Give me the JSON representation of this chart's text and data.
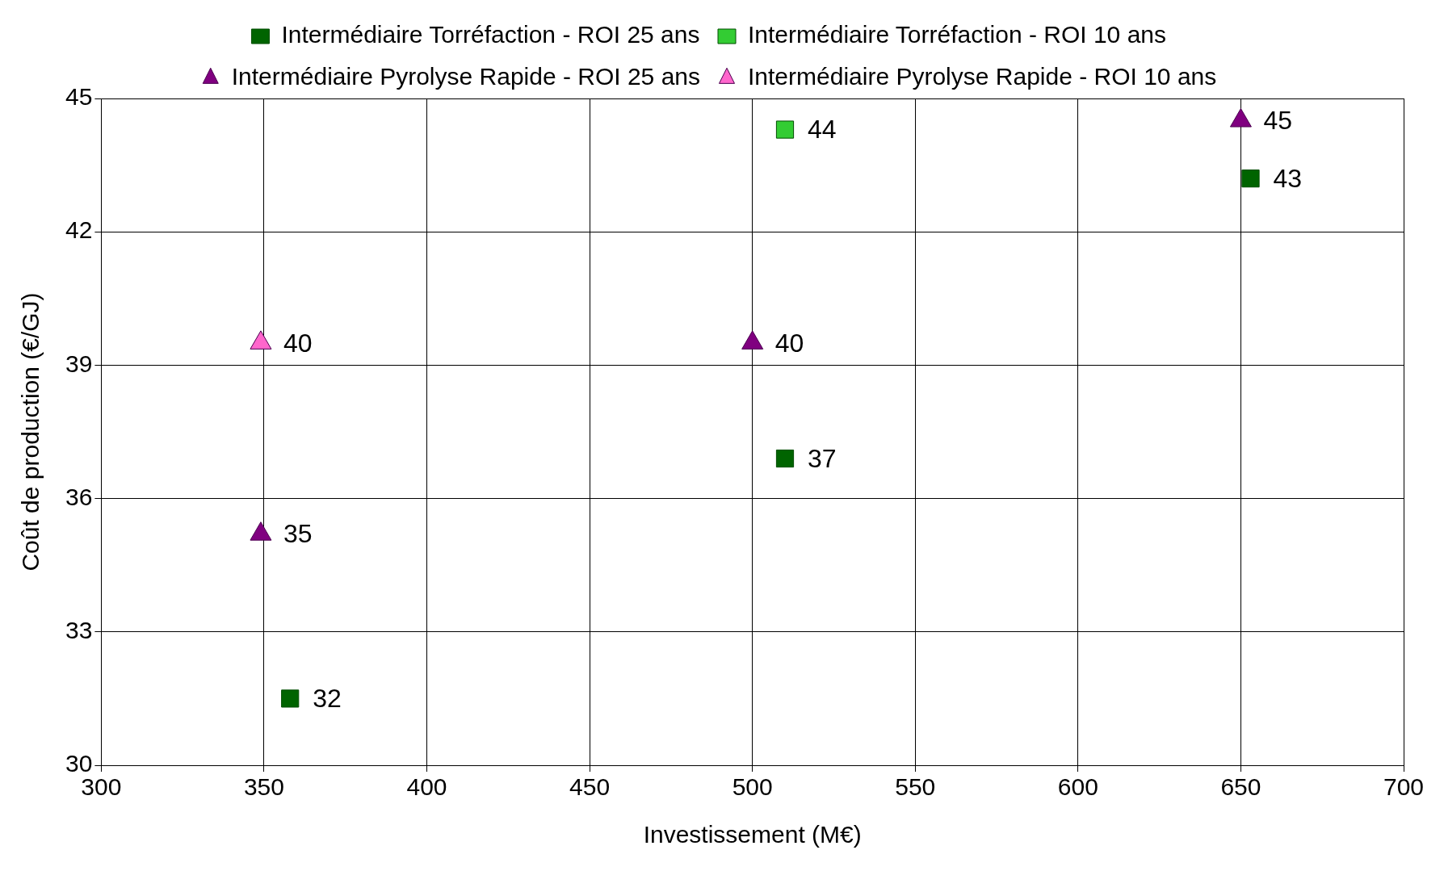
{
  "chart_data": {
    "type": "scatter",
    "xlabel": "Investissement (M€)",
    "ylabel": "Coût de production (€/GJ)",
    "xlim": [
      300,
      700
    ],
    "xticks": [
      300,
      350,
      400,
      450,
      500,
      550,
      600,
      650,
      700
    ],
    "ylim": [
      30,
      45
    ],
    "yticks": [
      30,
      33,
      36,
      39,
      42,
      45
    ],
    "grid": true,
    "legend": "top",
    "series": [
      {
        "name": "Intermédiaire Torréfaction - ROI 25 ans",
        "color": "#006400",
        "marker": "square",
        "x": [
          358,
          510,
          653
        ],
        "values": [
          31.5,
          36.9,
          43.2
        ],
        "value_labels": [
          "32",
          "37",
          "43"
        ]
      },
      {
        "name": "Intermédiaire Torréfaction - ROI 10 ans",
        "color": "#33cc33",
        "marker": "square",
        "x": [
          510
        ],
        "values": [
          44.3
        ],
        "value_labels": [
          "44"
        ]
      },
      {
        "name": "Intermédiaire Pyrolyse Rapide - ROI 25 ans",
        "color": "#800080",
        "marker": "triangle",
        "x": [
          349,
          500,
          650
        ],
        "values": [
          35.2,
          39.5,
          44.5
        ],
        "value_labels": [
          "35",
          "40",
          "45"
        ]
      },
      {
        "name": "Intermédiaire Pyrolyse Rapide - ROI 10 ans",
        "color": "#ff66cc",
        "marker": "triangle",
        "x": [
          349
        ],
        "values": [
          39.5
        ],
        "value_labels": [
          "40"
        ]
      }
    ]
  }
}
